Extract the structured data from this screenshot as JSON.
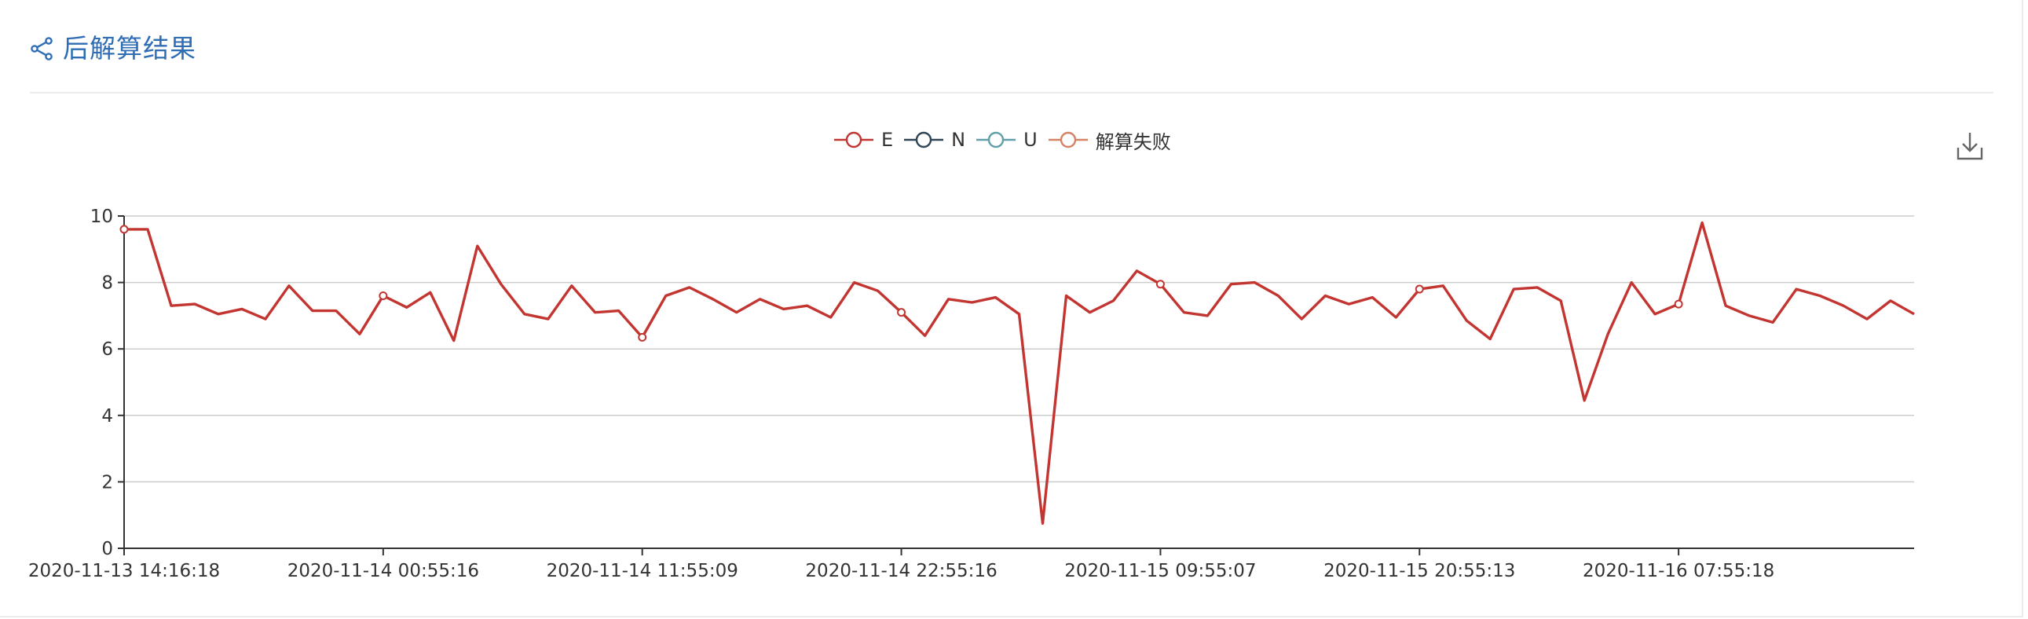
{
  "panel": {
    "title": "后解算结果",
    "icons": {
      "header": "share-icon",
      "toolbox": "download-icon"
    }
  },
  "legend": {
    "items": [
      {
        "label": "E",
        "color": "#c23531"
      },
      {
        "label": "N",
        "color": "#2f4554"
      },
      {
        "label": "U",
        "color": "#61a0a8"
      },
      {
        "label": "解算失败",
        "color": "#d48265"
      }
    ]
  },
  "chart_data": {
    "type": "line",
    "title": "",
    "xlabel": "",
    "ylabel": "",
    "ylim": [
      0,
      10
    ],
    "y_ticks": [
      0,
      2,
      4,
      6,
      8,
      10
    ],
    "grid": true,
    "legend_position": "top-center",
    "x_tick_labels": [
      "2020-11-13 14:16:18",
      "2020-11-14 00:55:16",
      "2020-11-14 11:55:09",
      "2020-11-14 22:55:16",
      "2020-11-15 09:55:07",
      "2020-11-15 20:55:13",
      "2020-11-16 07:55:18"
    ],
    "x_tick_indices": [
      0,
      11,
      22,
      33,
      44,
      55,
      66
    ],
    "series": [
      {
        "name": "E",
        "color": "#c23531",
        "values": [
          9.6,
          9.6,
          7.3,
          7.35,
          7.05,
          7.2,
          6.9,
          7.9,
          7.15,
          7.15,
          6.45,
          7.6,
          7.25,
          7.7,
          6.25,
          9.1,
          7.95,
          7.05,
          6.9,
          7.9,
          7.1,
          7.15,
          6.35,
          7.6,
          7.85,
          7.5,
          7.1,
          7.5,
          7.2,
          7.3,
          6.95,
          8.0,
          7.75,
          7.1,
          6.4,
          7.5,
          7.4,
          7.55,
          7.05,
          0.75,
          7.6,
          7.1,
          7.45,
          8.35,
          7.95,
          7.1,
          7.0,
          7.95,
          8.0,
          7.6,
          6.9,
          7.6,
          7.35,
          7.55,
          6.95,
          7.8,
          7.9,
          6.85,
          6.3,
          7.8,
          7.85,
          7.45,
          4.45,
          6.45,
          8.0,
          7.05,
          7.35,
          9.8,
          7.3,
          7.0,
          6.8,
          7.8,
          7.6,
          7.3,
          6.9,
          7.45,
          7.05
        ]
      }
    ]
  }
}
